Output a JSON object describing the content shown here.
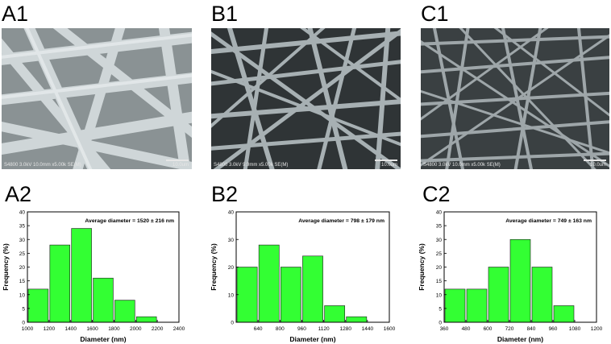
{
  "panels": [
    {
      "label": "A1",
      "sem_caption": "S4800 3.0kV 10.0mm x5.00k SE(M)",
      "sem_scale": "10.0um"
    },
    {
      "label": "B1",
      "sem_caption": "S4800 3.0kV 9.9mm x5.00k SE(M)",
      "sem_scale": "10.0um"
    },
    {
      "label": "C1",
      "sem_caption": "S4800 3.0kV 10.0mm x5.00k SE(M)",
      "sem_scale": "10.0um"
    }
  ],
  "chart_labels": [
    "A2",
    "B2",
    "C2"
  ],
  "colors": {
    "bar": "#33ff33",
    "bar_edge": "#1a1a1a"
  },
  "chart_data": [
    {
      "type": "bar",
      "annotation": "Average diameter = 1520 ± 216 nm",
      "xlabel": "Diameter (nm)",
      "ylabel": "Frequency (%)",
      "xlim": [
        1000,
        2400
      ],
      "ylim": [
        0,
        40
      ],
      "xticks": [
        "1000",
        "1200",
        "1400",
        "1600",
        "1800",
        "2000",
        "2200",
        "2400"
      ],
      "yticks": [
        "0",
        "5",
        "10",
        "15",
        "20",
        "25",
        "30",
        "35",
        "40"
      ],
      "bin_width": 200,
      "x": [
        1100,
        1300,
        1500,
        1700,
        1900,
        2100
      ],
      "values": [
        12,
        28,
        34,
        16,
        8,
        2
      ]
    },
    {
      "type": "bar",
      "annotation": "Average diameter = 798 ± 179 nm",
      "xlabel": "Diameter (nm)",
      "ylabel": "Frequency (%)",
      "xlim": [
        480,
        1600
      ],
      "ylim": [
        0,
        40
      ],
      "xticks": [
        "640",
        "800",
        "960",
        "1120",
        "1280",
        "1440",
        "1600"
      ],
      "yticks": [
        "0",
        "10",
        "20",
        "30",
        "40"
      ],
      "bin_width": 160,
      "x": [
        560,
        720,
        880,
        1040,
        1200,
        1360
      ],
      "values": [
        20,
        28,
        20,
        24,
        6,
        2
      ]
    },
    {
      "type": "bar",
      "annotation": "Average diameter = 749 ± 163 nm",
      "xlabel": "Diameter (nm)",
      "ylabel": "Frequency (%)",
      "xlim": [
        360,
        1200
      ],
      "ylim": [
        0,
        40
      ],
      "xticks": [
        "360",
        "480",
        "600",
        "720",
        "840",
        "960",
        "1080",
        "1200"
      ],
      "yticks": [
        "0",
        "5",
        "10",
        "15",
        "20",
        "25",
        "30",
        "35",
        "40"
      ],
      "bin_width": 120,
      "x": [
        420,
        540,
        660,
        780,
        900,
        1020
      ],
      "values": [
        12,
        12,
        20,
        30,
        20,
        6
      ]
    }
  ]
}
